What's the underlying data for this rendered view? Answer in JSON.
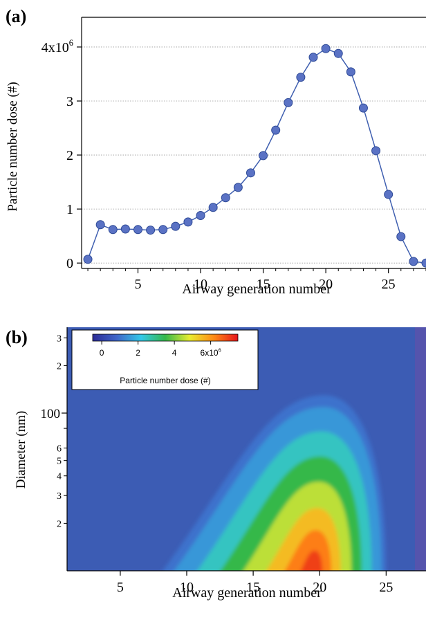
{
  "colors": {
    "line": "#3f5fb0",
    "marker_fill": "#5a72c4",
    "marker_stroke": "#2e4a96",
    "grid": "#999999",
    "heat_background": "#3c5cb4",
    "heat_right_edge": "#6a4fa8"
  },
  "chart_data": [
    {
      "panel_label": "(a)",
      "type": "line",
      "xlabel": "Airway generation number",
      "ylabel": "Particle number dose (#)",
      "xlim": [
        0.5,
        28
      ],
      "ylim": [
        -0.1,
        4.55
      ],
      "y_unit_multiplier": "1e6",
      "x_ticks": [
        {
          "value": 5,
          "label": "5"
        },
        {
          "value": 10,
          "label": "10"
        },
        {
          "value": 15,
          "label": "15"
        },
        {
          "value": 20,
          "label": "20"
        },
        {
          "value": 25,
          "label": "25"
        }
      ],
      "y_ticks": [
        {
          "value": 0,
          "label": "0"
        },
        {
          "value": 1,
          "label": "1"
        },
        {
          "value": 2,
          "label": "2"
        },
        {
          "value": 3,
          "label": "3"
        },
        {
          "value": 4,
          "label": "4x10",
          "exponent": "6"
        }
      ],
      "grid": "horizontal dotted",
      "x": [
        1,
        2,
        3,
        4,
        5,
        6,
        7,
        8,
        9,
        10,
        11,
        12,
        13,
        14,
        15,
        16,
        17,
        18,
        19,
        20,
        21,
        22,
        23,
        24,
        25,
        26,
        27,
        28
      ],
      "y": [
        0.07,
        0.71,
        0.62,
        0.63,
        0.62,
        0.61,
        0.62,
        0.68,
        0.76,
        0.88,
        1.03,
        1.21,
        1.4,
        1.67,
        1.99,
        2.46,
        2.97,
        3.44,
        3.81,
        3.97,
        3.88,
        3.54,
        2.87,
        2.08,
        1.27,
        0.49,
        0.03,
        0.0
      ]
    },
    {
      "panel_label": "(b)",
      "type": "heatmap",
      "xlabel": "Airway generation number",
      "ylabel": "Diameter (nm)",
      "xlim": [
        1,
        28
      ],
      "y_scale": "log",
      "ylim_nm": [
        10,
        350
      ],
      "x_ticks": [
        {
          "value": 5,
          "label": "5"
        },
        {
          "value": 10,
          "label": "10"
        },
        {
          "value": 15,
          "label": "15"
        },
        {
          "value": 20,
          "label": "20"
        },
        {
          "value": 25,
          "label": "25"
        }
      ],
      "y_major_ticks": [
        {
          "value": 100,
          "label": "100"
        }
      ],
      "y_minor_ticks": [
        {
          "value": 20,
          "label": "2"
        },
        {
          "value": 30,
          "label": "3"
        },
        {
          "value": 40,
          "label": "4"
        },
        {
          "value": 50,
          "label": "5"
        },
        {
          "value": 60,
          "label": "6"
        },
        {
          "value": 80,
          "label": ""
        },
        {
          "value": 200,
          "label": "2"
        },
        {
          "value": 300,
          "label": "3"
        }
      ],
      "colorbar": {
        "label": "Particle number dose (#)",
        "range": [
          -0.5,
          7.5
        ],
        "ticks": [
          {
            "value": 0,
            "label": "0"
          },
          {
            "value": 2,
            "label": "2"
          },
          {
            "value": 4,
            "label": "4"
          },
          {
            "value": 6,
            "label": "6x10",
            "exponent": "6"
          }
        ],
        "placement": "top-left",
        "colormap": [
          "#2c2c96",
          "#3f66c8",
          "#33c8e8",
          "#36b84a",
          "#e8ec30",
          "#ff8a14",
          "#e6141c"
        ]
      },
      "peak": {
        "x": 19.5,
        "diameter_nm": 15,
        "value": 7.0
      },
      "contour_extent": {
        "x_start": 8,
        "x_end": 25,
        "max_diameter_nm": 130
      }
    }
  ]
}
